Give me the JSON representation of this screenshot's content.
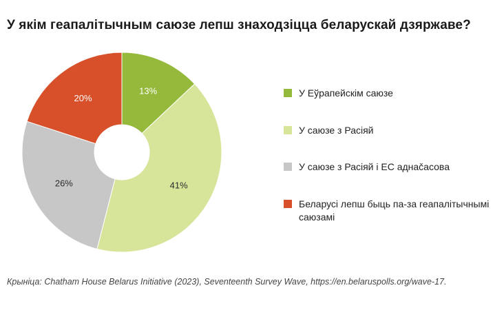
{
  "title": "У якім геапалітычным саюзе лепш знаходзіцца беларускай дзяржаве?",
  "source": "Крыніца: Chatham House Belarus Initiative (2023), Seventeenth Survey Wave, https://en.belaruspolls.org/wave-17.",
  "chart_data": {
    "type": "pie",
    "donut": true,
    "start_angle_deg": 0,
    "direction": "clockwise",
    "categories": [
      "У Еўрапейскім саюзе",
      "У саюзе з Расіяй",
      "У саюзе з Расіяй і ЕС аднačасова",
      "Беларусі лепш быць па-за геапалітычнымі саюзамі"
    ],
    "values": [
      13,
      41,
      26,
      20
    ],
    "value_labels": [
      "13%",
      "41%",
      "26%",
      "20%"
    ],
    "colors": [
      "#95b93a",
      "#d7e59a",
      "#c7c7c7",
      "#d7502a"
    ],
    "label_colors": [
      "#ffffff",
      "#2b2b2b",
      "#2b2b2b",
      "#ffffff"
    ],
    "legend_position": "right"
  }
}
